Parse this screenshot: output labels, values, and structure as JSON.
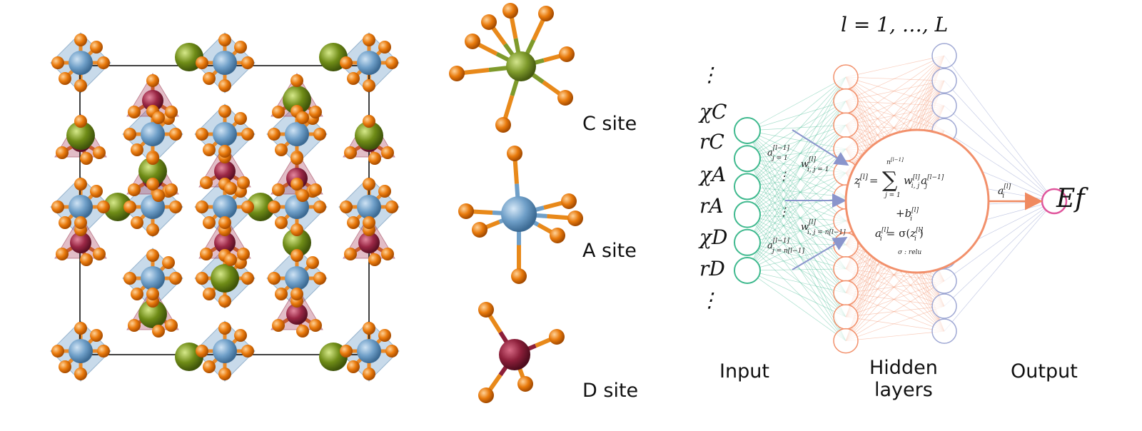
{
  "sites": [
    {
      "label": "C site",
      "color": "#7e9a2b"
    },
    {
      "label": "A site",
      "color": "#6f9fc8"
    },
    {
      "label": "D site",
      "color": "#8c1f3a"
    }
  ],
  "oxygen_color": "#e87a0c",
  "network": {
    "layer_range": "l = 1, …, L",
    "inputs": [
      "⋮",
      "χC",
      "rC",
      "χA",
      "rA",
      "χD",
      "rD",
      "⋮"
    ],
    "input_label": "Input",
    "hidden_label_line1": "Hidden",
    "hidden_label_line2": "layers",
    "output_label": "Output",
    "output_symbol": "Ef",
    "activation_note": "σ : relu",
    "input_color": "#3fb98e",
    "hidden_color": "#f2906b",
    "hidden2_color": "#9fa8d4",
    "output_color": "#e0559c"
  }
}
